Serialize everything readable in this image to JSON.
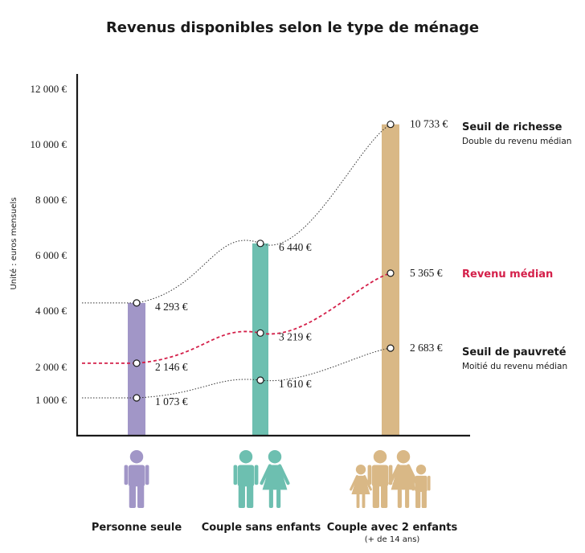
{
  "title": "Revenus disponibles selon le type de ménage",
  "colors": {
    "personne_seule": "#a196c7",
    "couple_sans_enfants": "#6dbfb0",
    "couple_avec_enfants": "#d9b886",
    "median": "#d4204a",
    "axis": "#1a1a1a"
  },
  "chart_data": {
    "type": "bar",
    "ylabel": "Unité : euros mensuels",
    "ylim": [
      0,
      12000
    ],
    "y_ticks": [
      {
        "value": 1000,
        "label": "1 000 €"
      },
      {
        "value": 2000,
        "label": "2 000 €"
      },
      {
        "value": 4000,
        "label": "4 000 €"
      },
      {
        "value": 6000,
        "label": "6 000 €"
      },
      {
        "value": 8000,
        "label": "8 000 €"
      },
      {
        "value": 10000,
        "label": "10 000 €"
      },
      {
        "value": 12000,
        "label": "12 000 €"
      }
    ],
    "categories": [
      {
        "label": "Personne seule",
        "sublabel": "",
        "color": "#a196c7",
        "icon": "man-icon"
      },
      {
        "label": "Couple sans enfants",
        "sublabel": "",
        "color": "#6dbfb0",
        "icon": "couple-icon"
      },
      {
        "label": "Couple avec 2 enfants",
        "sublabel": "(+ de 14 ans)",
        "color": "#d9b886",
        "icon": "family-icon"
      }
    ],
    "series": [
      {
        "name": "Seuil de richesse",
        "subtitle": "Double du revenu médian",
        "style": "dotted",
        "values": [
          4293,
          6440,
          10733
        ],
        "labels": [
          "4 293 €",
          "6 440 €",
          "10 733 €"
        ]
      },
      {
        "name": "Revenu médian",
        "subtitle": "",
        "style": "dashed-red",
        "values": [
          2146,
          3219,
          5365
        ],
        "labels": [
          "2 146 €",
          "3 219 €",
          "5 365 €"
        ]
      },
      {
        "name": "Seuil de pauvreté",
        "subtitle": "Moitié du revenu médian",
        "style": "dotted",
        "values": [
          1073,
          1610,
          2683
        ],
        "labels": [
          "1 073 €",
          "1 610 €",
          "2 683 €"
        ]
      }
    ]
  }
}
